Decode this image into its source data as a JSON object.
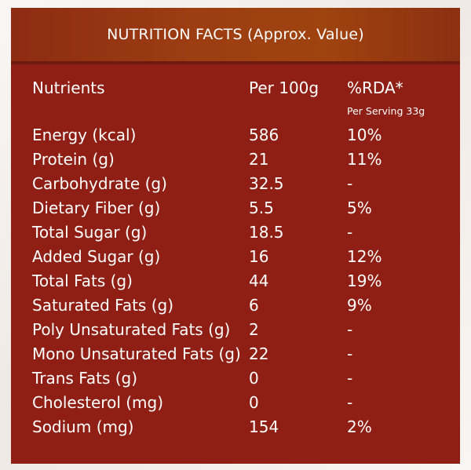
{
  "title": "NUTRITION FACTS (Approx. Value)",
  "columns": {
    "nutrients": "Nutrients",
    "per100g": "Per 100g",
    "rda": "%RDA*",
    "rda_sub": "Per Serving 33g"
  },
  "rows": [
    {
      "name": "Energy (kcal)",
      "per100g": "586",
      "rda": "10%"
    },
    {
      "name": "Protein (g)",
      "per100g": "21",
      "rda": "11%"
    },
    {
      "name": "Carbohydrate (g)",
      "per100g": "32.5",
      "rda": "-"
    },
    {
      "name": "Dietary Fiber (g)",
      "per100g": "5.5",
      "rda": "5%"
    },
    {
      "name": "Total Sugar (g)",
      "per100g": "18.5",
      "rda": "-"
    },
    {
      "name": "Added Sugar (g)",
      "per100g": "16",
      "rda": "12%"
    },
    {
      "name": "Total Fats (g)",
      "per100g": "44",
      "rda": "19%"
    },
    {
      "name": "Saturated Fats (g)",
      "per100g": "6",
      "rda": "9%"
    },
    {
      "name": "Poly Unsaturated Fats (g)",
      "per100g": "2",
      "rda": "-"
    },
    {
      "name": "Mono Unsaturated Fats (g)",
      "per100g": "22",
      "rda": "-"
    },
    {
      "name": "Trans Fats (g)",
      "per100g": "0",
      "rda": "-"
    },
    {
      "name": "Cholesterol (mg)",
      "per100g": "0",
      "rda": "-"
    },
    {
      "name": "Sodium (mg)",
      "per100g": "154",
      "rda": "2%"
    }
  ],
  "colors": {
    "card": "#8f1f14",
    "header": "#9c3d12",
    "text": "#ffffff"
  }
}
